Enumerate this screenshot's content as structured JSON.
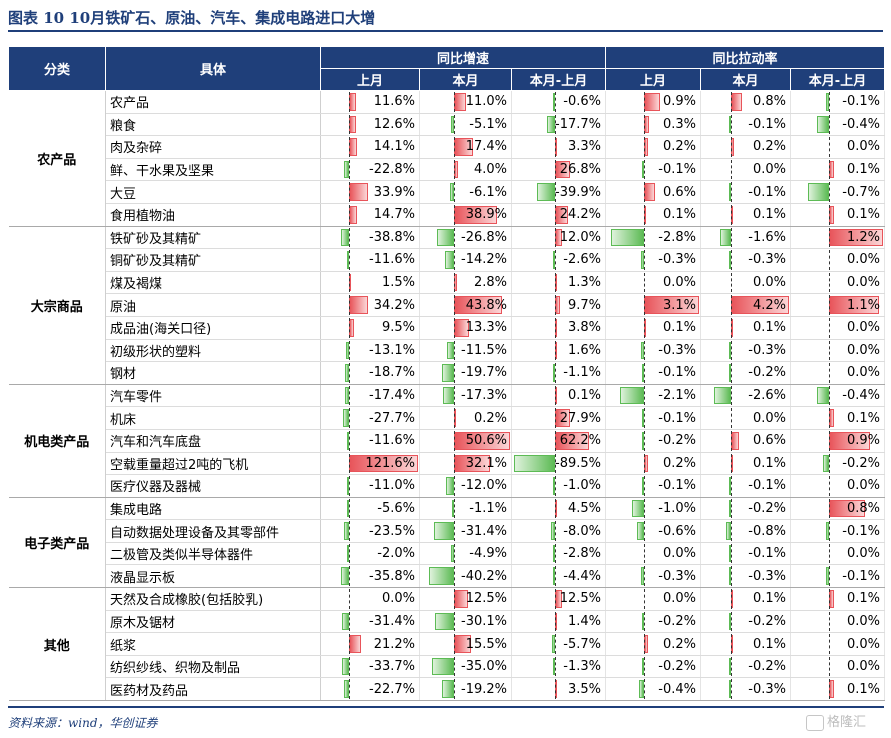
{
  "title": "图表 10    10月铁矿石、原油、汽车、集成电路进口大增",
  "source": "资料来源：wind，华创证券",
  "watermark": "格隆汇",
  "headers": {
    "category": "分类",
    "item": "具体",
    "group1": "同比增速",
    "group2": "同比拉动率",
    "sub": [
      "上月",
      "本月",
      "本月-上月",
      "上月",
      "本月",
      "本月-上月"
    ]
  },
  "groups": [
    {
      "category": "农产品",
      "rows": [
        {
          "name": "农产品",
          "v": [
            11.6,
            11.0,
            -0.6,
            0.9,
            0.8,
            -0.1
          ]
        },
        {
          "name": "粮食",
          "v": [
            12.6,
            -5.1,
            -17.7,
            0.3,
            -0.1,
            -0.4
          ]
        },
        {
          "name": "肉及杂碎",
          "v": [
            14.1,
            17.4,
            3.3,
            0.2,
            0.2,
            0.0
          ]
        },
        {
          "name": "鲜、干水果及坚果",
          "v": [
            -22.8,
            4.0,
            26.8,
            -0.1,
            0.0,
            0.1
          ]
        },
        {
          "name": "大豆",
          "v": [
            33.9,
            -6.1,
            -39.9,
            0.6,
            -0.1,
            -0.7
          ]
        },
        {
          "name": "食用植物油",
          "v": [
            14.7,
            38.9,
            24.2,
            0.1,
            0.1,
            0.1
          ]
        }
      ]
    },
    {
      "category": "大宗商品",
      "rows": [
        {
          "name": "铁矿砂及其精矿",
          "v": [
            -38.8,
            -26.8,
            12.0,
            -2.8,
            -1.6,
            1.2
          ]
        },
        {
          "name": "铜矿砂及其精矿",
          "v": [
            -11.6,
            -14.2,
            -2.6,
            -0.3,
            -0.3,
            0.0
          ]
        },
        {
          "name": "煤及褐煤",
          "v": [
            1.5,
            2.8,
            1.3,
            0.0,
            0.0,
            0.0
          ]
        },
        {
          "name": "原油",
          "v": [
            34.2,
            43.8,
            9.7,
            3.1,
            4.2,
            1.1
          ]
        },
        {
          "name": "成品油(海关口径)",
          "v": [
            9.5,
            13.3,
            3.8,
            0.1,
            0.1,
            0.0
          ]
        },
        {
          "name": "初级形状的塑料",
          "v": [
            -13.1,
            -11.5,
            1.6,
            -0.3,
            -0.3,
            0.0
          ]
        },
        {
          "name": "钢材",
          "v": [
            -18.7,
            -19.7,
            -1.1,
            -0.1,
            -0.2,
            0.0
          ]
        }
      ]
    },
    {
      "category": "机电类产品",
      "rows": [
        {
          "name": "汽车零件",
          "v": [
            -17.4,
            -17.3,
            0.1,
            -2.1,
            -2.6,
            -0.4
          ]
        },
        {
          "name": "机床",
          "v": [
            -27.7,
            0.2,
            27.9,
            -0.1,
            0.0,
            0.1
          ]
        },
        {
          "name": "汽车和汽车底盘",
          "v": [
            -11.6,
            50.6,
            62.2,
            -0.2,
            0.6,
            0.9
          ]
        },
        {
          "name": "空载重量超过2吨的飞机",
          "v": [
            121.6,
            32.1,
            -89.5,
            0.2,
            0.1,
            -0.2
          ]
        },
        {
          "name": "医疗仪器及器械",
          "v": [
            -11.0,
            -12.0,
            -1.0,
            -0.1,
            -0.1,
            0.0
          ]
        }
      ]
    },
    {
      "category": "电子类产品",
      "rows": [
        {
          "name": "集成电路",
          "v": [
            -5.6,
            -1.1,
            4.5,
            -1.0,
            -0.2,
            0.8
          ]
        },
        {
          "name": "自动数据处理设备及其零部件",
          "v": [
            -23.5,
            -31.4,
            -8.0,
            -0.6,
            -0.8,
            -0.1
          ]
        },
        {
          "name": "二极管及类似半导体器件",
          "v": [
            -2.0,
            -4.9,
            -2.8,
            0.0,
            -0.1,
            0.0
          ]
        },
        {
          "name": "液晶显示板",
          "v": [
            -35.8,
            -40.2,
            -4.4,
            -0.3,
            -0.3,
            -0.1
          ]
        }
      ]
    },
    {
      "category": "其他",
      "rows": [
        {
          "name": "天然及合成橡胶(包括胶乳)",
          "v": [
            0.0,
            12.5,
            12.5,
            0.0,
            0.1,
            0.1
          ]
        },
        {
          "name": "原木及锯材",
          "v": [
            -31.4,
            -30.1,
            1.4,
            -0.2,
            -0.2,
            0.0
          ]
        },
        {
          "name": "纸浆",
          "v": [
            21.2,
            15.5,
            -5.7,
            0.2,
            0.1,
            0.0
          ]
        },
        {
          "name": "纺织纱线、织物及制品",
          "v": [
            -33.7,
            -35.0,
            -1.3,
            -0.2,
            -0.2,
            0.0
          ]
        },
        {
          "name": "医药材及药品",
          "v": [
            -22.7,
            -19.2,
            3.5,
            -0.4,
            -0.3,
            0.1
          ]
        }
      ]
    }
  ]
}
